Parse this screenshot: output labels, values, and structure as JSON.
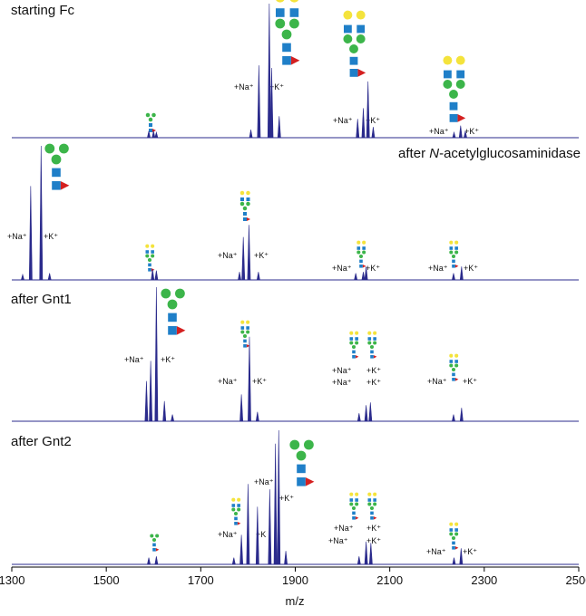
{
  "chart_data": {
    "type": "spectrum",
    "xlabel": "m/z",
    "xlim": [
      1300,
      2500
    ],
    "xticks": [
      1300,
      1500,
      1700,
      1900,
      2100,
      2300,
      2500
    ],
    "color": "#2b2b8c",
    "panels": [
      {
        "title": [
          "starting Fc"
        ],
        "x": [
          1590,
          1600,
          1606,
          1806,
          1823,
          1845,
          1850,
          1866,
          2032,
          2044,
          2054,
          2065,
          2236,
          2250,
          2260
        ],
        "values": [
          5,
          5,
          4,
          6,
          54,
          100,
          52,
          16,
          14,
          22,
          42,
          8,
          4,
          9,
          5
        ],
        "labels": [
          "+Na⁺",
          "+K⁺",
          "+Na⁺",
          "+K⁺",
          "+Na⁺",
          "+K⁺"
        ]
      },
      {
        "title": [
          "after ",
          "N",
          "-acetylglucosaminidase"
        ],
        "x": [
          1323,
          1340,
          1362,
          1380,
          1598,
          1606,
          1782,
          1790,
          1802,
          1822,
          2028,
          2044,
          2050,
          2235,
          2252
        ],
        "values": [
          4,
          70,
          100,
          5,
          8,
          7,
          6,
          32,
          41,
          6,
          5,
          6,
          10,
          5,
          10
        ],
        "labels": [
          "+Na⁺",
          "+K⁺",
          "+Na⁺",
          "+K⁺",
          "+Na⁺",
          "+K⁺",
          "+Na⁺",
          "+K⁺"
        ]
      },
      {
        "title": [
          "after Gnt1"
        ],
        "x": [
          1585,
          1594,
          1606,
          1623,
          1640,
          1786,
          1803,
          1820,
          2035,
          2050,
          2059,
          2235,
          2252
        ],
        "values": [
          30,
          45,
          100,
          15,
          5,
          20,
          63,
          7,
          6,
          12,
          14,
          5,
          10
        ],
        "labels": [
          "+Na⁺",
          "+K⁺",
          "+Na⁺",
          "+K⁺",
          "+Na⁺",
          "+Na⁺",
          "+K⁺",
          "+K⁺",
          "+Na⁺",
          "+K⁺"
        ]
      },
      {
        "title": [
          "after Gnt2"
        ],
        "x": [
          1590,
          1606,
          1770,
          1786,
          1800,
          1820,
          1846,
          1858,
          1865,
          1880,
          2035,
          2050,
          2060,
          2236,
          2251
        ],
        "values": [
          5,
          6,
          5,
          22,
          60,
          43,
          56,
          90,
          100,
          10,
          6,
          17,
          16,
          5,
          12
        ],
        "labels": [
          "+Na⁺",
          "+K⁺",
          "+Na⁺",
          "+K",
          "+Na⁺",
          "+Na⁺",
          "+K⁺",
          "+K⁺",
          "+Na⁺",
          "+K⁺"
        ]
      }
    ]
  }
}
